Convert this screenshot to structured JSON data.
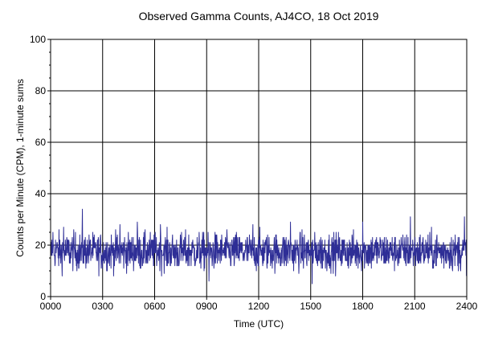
{
  "chart_data": {
    "type": "line",
    "title": "Observed Gamma Counts, AJ4CO, 18 Oct 2019",
    "xlabel": "Time (UTC)",
    "ylabel": "Counts per Minute (CPM), 1-minute sums",
    "xlim": [
      0,
      1440
    ],
    "ylim": [
      0,
      100
    ],
    "x_unit": "minutes after 0000 UTC",
    "x_ticks": [
      {
        "value": 0,
        "label": "0000"
      },
      {
        "value": 180,
        "label": "0300"
      },
      {
        "value": 360,
        "label": "0600"
      },
      {
        "value": 540,
        "label": "0900"
      },
      {
        "value": 720,
        "label": "1200"
      },
      {
        "value": 900,
        "label": "1500"
      },
      {
        "value": 1080,
        "label": "1800"
      },
      {
        "value": 1260,
        "label": "2100"
      },
      {
        "value": 1440,
        "label": "2400"
      }
    ],
    "y_ticks": [
      {
        "value": 0,
        "label": "0"
      },
      {
        "value": 20,
        "label": "20"
      },
      {
        "value": 40,
        "label": "40"
      },
      {
        "value": 60,
        "label": "60"
      },
      {
        "value": 80,
        "label": "80"
      },
      {
        "value": 100,
        "label": "100"
      }
    ],
    "grid": true,
    "colors": {
      "series": "#2e2e96",
      "grid": "#000000",
      "plot_border": "#000000"
    },
    "series": [
      {
        "name": "",
        "summary": {
          "mean": 17.5,
          "min": 5,
          "max": 34,
          "points": 1440
        },
        "notable_points": [
          {
            "x": 8,
            "y": 25
          },
          {
            "x": 45,
            "y": 27
          },
          {
            "x": 110,
            "y": 34
          },
          {
            "x": 240,
            "y": 28
          },
          {
            "x": 300,
            "y": 29
          },
          {
            "x": 380,
            "y": 28
          },
          {
            "x": 548,
            "y": 6
          },
          {
            "x": 700,
            "y": 28
          },
          {
            "x": 830,
            "y": 29
          },
          {
            "x": 905,
            "y": 5
          },
          {
            "x": 1080,
            "y": 29
          },
          {
            "x": 1245,
            "y": 31
          },
          {
            "x": 1432,
            "y": 31
          }
        ]
      }
    ]
  }
}
